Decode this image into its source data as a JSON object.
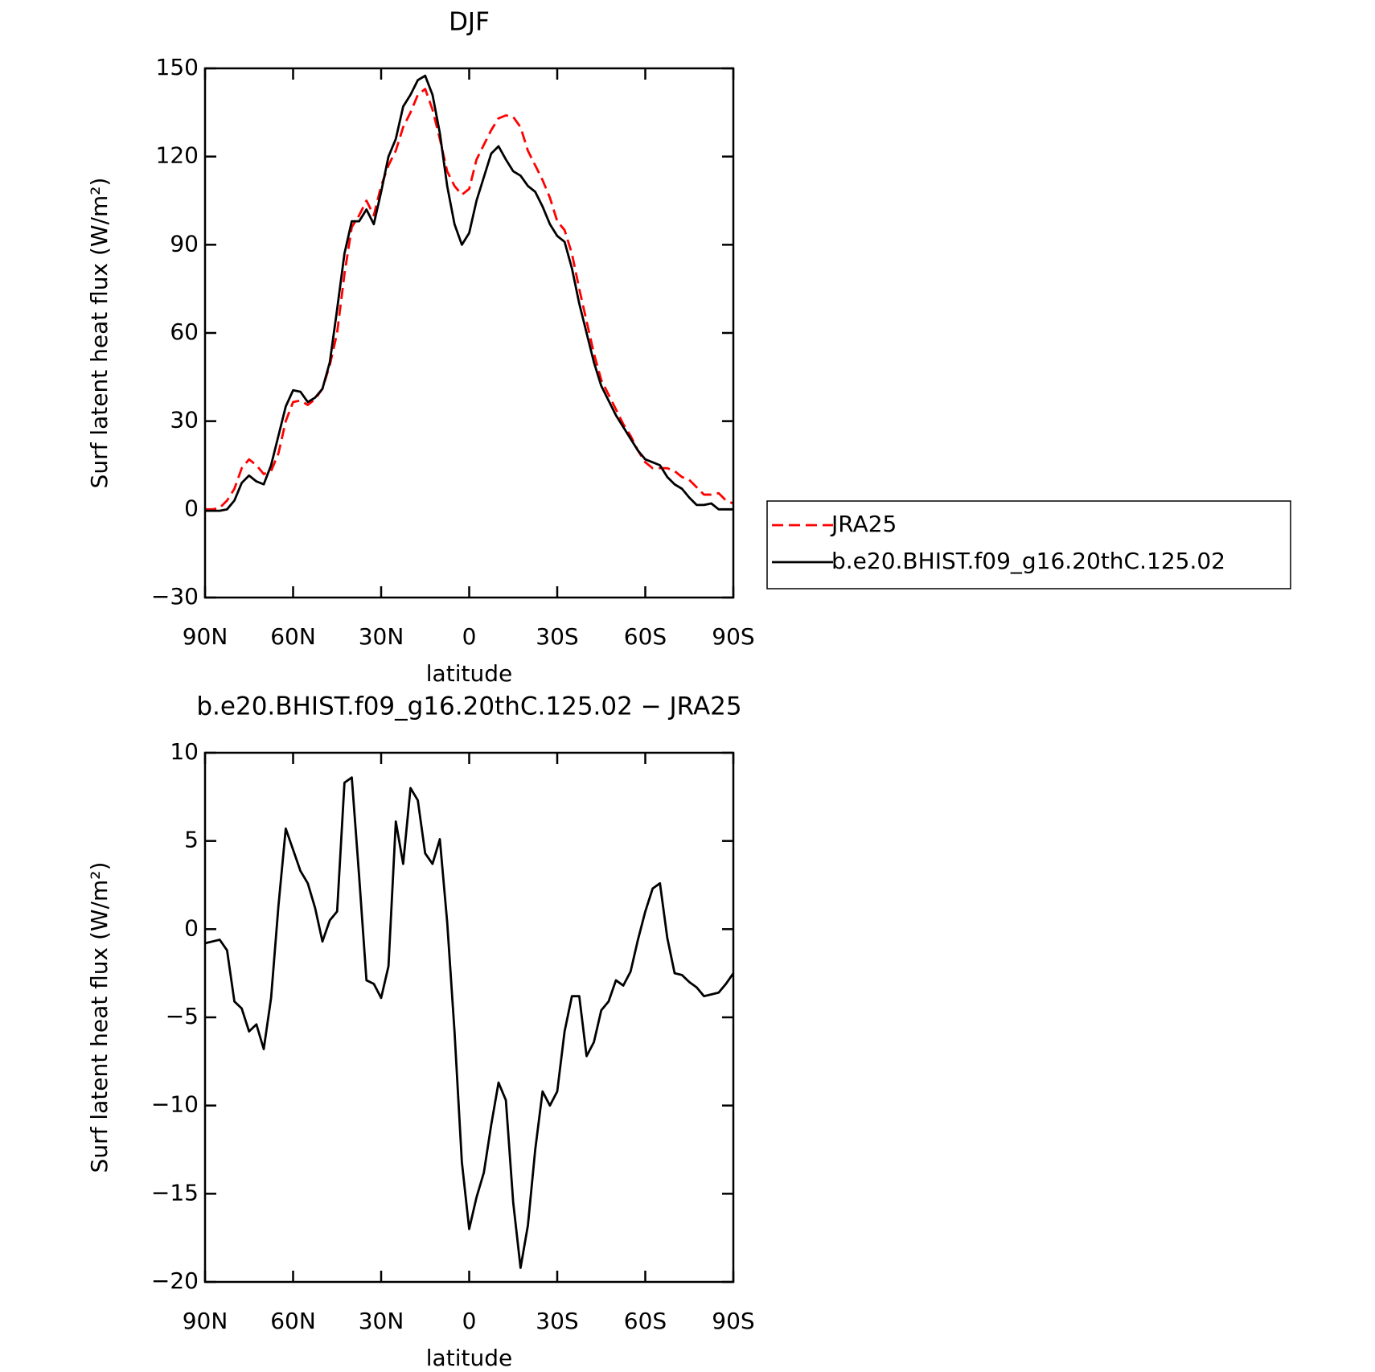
{
  "chart_data": [
    {
      "type": "line",
      "title": "DJF",
      "xlabel": "latitude",
      "ylabel": "Surf latent heat flux (W/m²)",
      "x": [
        90,
        87.5,
        85,
        82.5,
        80,
        77.5,
        75,
        72.5,
        70,
        67.5,
        65,
        62.5,
        60,
        57.5,
        55,
        52.5,
        50,
        47.5,
        45,
        42.5,
        40,
        37.5,
        35,
        32.5,
        30,
        27.5,
        25,
        22.5,
        20,
        17.5,
        15,
        12.5,
        10,
        7.5,
        5,
        2.5,
        0,
        -2.5,
        -5,
        -7.5,
        -10,
        -12.5,
        -15,
        -17.5,
        -20,
        -22.5,
        -25,
        -27.5,
        -30,
        -32.5,
        -35,
        -37.5,
        -40,
        -42.5,
        -45,
        -47.5,
        -50,
        -52.5,
        -55,
        -57.5,
        -60,
        -62.5,
        -65,
        -67.5,
        -70,
        -72.5,
        -75,
        -77.5,
        -80,
        -82.5,
        -85,
        -87.5,
        -90
      ],
      "series": [
        {
          "name": "JRA25",
          "color": "#ff0000",
          "line_style": "dashed",
          "values": [
            0,
            0,
            0.5,
            3,
            7,
            14,
            17,
            15,
            12,
            13,
            19,
            30,
            36.5,
            37,
            35.5,
            37.5,
            41,
            49,
            60,
            80,
            96,
            100,
            105,
            100,
            110,
            117,
            122,
            130,
            135,
            141,
            143,
            136,
            126,
            115,
            110,
            107,
            109,
            119,
            124,
            129,
            133,
            134,
            133.5,
            130,
            122,
            117,
            112,
            106,
            98,
            95,
            87,
            75,
            64,
            53,
            44,
            39,
            34,
            29,
            25,
            20,
            16,
            14,
            14,
            14,
            13,
            11,
            10,
            7.5,
            5,
            5,
            5.5,
            3,
            2
          ]
        },
        {
          "name": "b.e20.BHIST.f09_g16.20thC.125.02",
          "color": "#000000",
          "line_style": "solid",
          "values": [
            -0.5,
            -0.5,
            -0.5,
            0,
            3,
            9,
            11.5,
            9.5,
            8.5,
            15,
            25,
            35,
            40.5,
            40,
            36.5,
            38,
            41,
            50,
            68,
            87,
            98,
            98,
            102,
            97,
            108,
            120,
            126,
            137,
            141,
            146,
            147.5,
            141,
            128,
            110,
            97,
            90,
            94,
            105,
            113,
            121,
            123.5,
            119,
            115,
            113.5,
            110,
            108,
            103,
            97,
            93,
            91,
            82,
            70,
            60,
            50,
            42,
            37,
            32,
            28,
            24,
            20,
            17,
            16,
            15,
            11,
            8.5,
            7,
            4,
            1.5,
            1.5,
            2,
            0,
            0,
            0
          ]
        }
      ],
      "xlim": [
        90,
        -90
      ],
      "xticks": [
        {
          "value": 90,
          "label": "90N"
        },
        {
          "value": 60,
          "label": "60N"
        },
        {
          "value": 30,
          "label": "30N"
        },
        0,
        {
          "value": -30,
          "label": "30S"
        },
        {
          "value": -60,
          "label": "60S"
        },
        {
          "value": -90,
          "label": "90S"
        }
      ],
      "ylim": [
        -30,
        150
      ],
      "yticks": [
        {
          "value": -30,
          "label": "−30"
        },
        0,
        30,
        60,
        90,
        120,
        150
      ],
      "legend": "right"
    },
    {
      "type": "line",
      "title": "b.e20.BHIST.f09_g16.20thC.125.02 − JRA25",
      "xlabel": "latitude",
      "ylabel": "Surf latent heat flux (W/m²)",
      "x": [
        90,
        87.5,
        85,
        82.5,
        80,
        77.5,
        75,
        72.5,
        70,
        67.5,
        65,
        62.5,
        60,
        57.5,
        55,
        52.5,
        50,
        47.5,
        45,
        42.5,
        40,
        37.5,
        35,
        32.5,
        30,
        27.5,
        25,
        22.5,
        20,
        17.5,
        15,
        12.5,
        10,
        7.5,
        5,
        2.5,
        0,
        -2.5,
        -5,
        -7.5,
        -10,
        -12.5,
        -15,
        -17.5,
        -20,
        -22.5,
        -25,
        -27.5,
        -30,
        -32.5,
        -35,
        -37.5,
        -40,
        -42.5,
        -45,
        -47.5,
        -50,
        -52.5,
        -55,
        -57.5,
        -60,
        -62.5,
        -65,
        -67.5,
        -70,
        -72.5,
        -75,
        -77.5,
        -80,
        -82.5,
        -85,
        -87.5,
        -90
      ],
      "color": "#000000",
      "values": [
        -0.8,
        -0.7,
        -0.6,
        -1.2,
        -4.1,
        -4.5,
        -5.8,
        -5.4,
        -6.8,
        -3.9,
        1.3,
        5.7,
        4.5,
        3.3,
        2.6,
        1.2,
        -0.7,
        0.5,
        1.0,
        8.3,
        8.6,
        3,
        -2.9,
        -3.1,
        -3.9,
        -2.1,
        6.1,
        3.7,
        8.0,
        7.3,
        4.3,
        3.7,
        5.1,
        0.4,
        -5.8,
        -13.2,
        -17,
        -15.2,
        -13.8,
        -11.1,
        -8.7,
        -9.7,
        -15.5,
        -19.2,
        -16.8,
        -12.5,
        -9.2,
        -10,
        -9.2,
        -5.8,
        -3.8,
        -3.8,
        -7.2,
        -6.4,
        -4.6,
        -4.1,
        -2.9,
        -3.2,
        -2.4,
        -0.6,
        1.0,
        2.3,
        2.6,
        -0.5,
        -2.5,
        -2.6,
        -3.0,
        -3.3,
        -3.8,
        -3.7,
        -3.6,
        -3.1,
        -2.5
      ],
      "xlim": [
        90,
        -90
      ],
      "xticks": [
        {
          "value": 90,
          "label": "90N"
        },
        {
          "value": 60,
          "label": "60N"
        },
        {
          "value": 30,
          "label": "30N"
        },
        0,
        {
          "value": -30,
          "label": "30S"
        },
        {
          "value": -60,
          "label": "60S"
        },
        {
          "value": -90,
          "label": "90S"
        }
      ],
      "ylim": [
        -20,
        10
      ],
      "yticks": [
        {
          "value": -20,
          "label": "−20"
        },
        {
          "value": -15,
          "label": "−15"
        },
        {
          "value": -10,
          "label": "−10"
        },
        {
          "value": -5,
          "label": "−5"
        },
        0,
        5,
        10
      ]
    }
  ]
}
